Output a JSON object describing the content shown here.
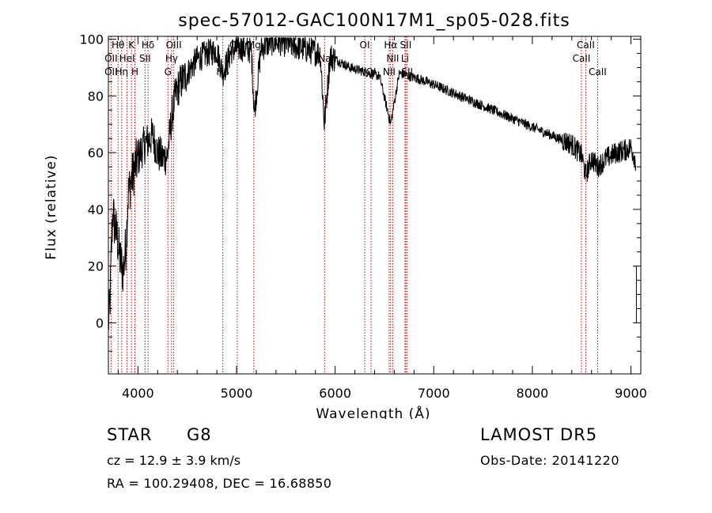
{
  "chart_data": {
    "type": "line",
    "title": "spec-57012-GAC100N17M1_sp05-028.fits",
    "xlabel": "Wavelength (Å)",
    "ylabel": "Flux (relative)",
    "xlim": [
      3700,
      9100
    ],
    "ylim": [
      -18,
      101
    ],
    "x_ticks": [
      4000,
      5000,
      6000,
      7000,
      8000,
      9000
    ],
    "y_ticks": [
      0,
      20,
      40,
      60,
      80,
      100
    ],
    "grid": false,
    "line_color": "#000000",
    "marker_color": "#c00000",
    "spectrum_anchors": {
      "x": [
        3700,
        3715,
        3730,
        3745,
        3760,
        3790,
        3820,
        3850,
        3880,
        3900,
        3930,
        3970,
        4000,
        4050,
        4100,
        4150,
        4200,
        4250,
        4300,
        4340,
        4380,
        4420,
        4500,
        4600,
        4700,
        4800,
        4860,
        4950,
        5050,
        5150,
        5180,
        5250,
        5350,
        5450,
        5550,
        5650,
        5750,
        5850,
        5890,
        5950,
        6050,
        6150,
        6250,
        6350,
        6450,
        6563,
        6650,
        6750,
        6850,
        7000,
        7200,
        7400,
        7600,
        7800,
        8000,
        8200,
        8400,
        8500,
        8542,
        8600,
        8662,
        8750,
        8850,
        8950,
        9000,
        9050
      ],
      "y": [
        0,
        5,
        25,
        40,
        35,
        30,
        22,
        18,
        28,
        45,
        50,
        55,
        58,
        62,
        64,
        66,
        60,
        58,
        59,
        72,
        80,
        84,
        88,
        93,
        95,
        96,
        88,
        96,
        97,
        96,
        74,
        97,
        99,
        99,
        98,
        97,
        96,
        95,
        70,
        94,
        92,
        90,
        89,
        88,
        87,
        70,
        88,
        87,
        86,
        84,
        81,
        78,
        75,
        72,
        69,
        66,
        63,
        59,
        52,
        58,
        55,
        58,
        60,
        61,
        62,
        57
      ]
    },
    "line_markers": [
      {
        "label": "Hθ",
        "wavelength": 3798,
        "row": 0
      },
      {
        "label": "OII",
        "wavelength": 3727,
        "row": 1
      },
      {
        "label": "OII",
        "wavelength": 3727,
        "row": 2
      },
      {
        "label": "K",
        "wavelength": 3934,
        "row": 0
      },
      {
        "label": "HeI",
        "wavelength": 3889,
        "row": 1
      },
      {
        "label": "Hη",
        "wavelength": 3835,
        "row": 2
      },
      {
        "label": "Hδ",
        "wavelength": 4102,
        "row": 0
      },
      {
        "label": "SII",
        "wavelength": 4072,
        "row": 1
      },
      {
        "label": "H",
        "wavelength": 3969,
        "row": 2
      },
      {
        "label": "OIII",
        "wavelength": 4363,
        "row": 0
      },
      {
        "label": "Hγ",
        "wavelength": 4341,
        "row": 1
      },
      {
        "label": "G",
        "wavelength": 4304,
        "row": 2
      },
      {
        "label": "OIII",
        "wavelength": 5007,
        "row": 0
      },
      {
        "label": "Hβ",
        "wavelength": 4861,
        "row": 2
      },
      {
        "label": "Mg",
        "wavelength": 5175,
        "row": 0
      },
      {
        "label": "Na",
        "wavelength": 5893,
        "row": 1
      },
      {
        "label": "OI",
        "wavelength": 6300,
        "row": 0
      },
      {
        "label": "OI",
        "wavelength": 6364,
        "row": 2
      },
      {
        "label": "Hα",
        "wavelength": 6563,
        "row": 0
      },
      {
        "label": "NII",
        "wavelength": 6584,
        "row": 1
      },
      {
        "label": "NII",
        "wavelength": 6548,
        "row": 2
      },
      {
        "label": "SII",
        "wavelength": 6716,
        "row": 0
      },
      {
        "label": "Li",
        "wavelength": 6708,
        "row": 1
      },
      {
        "label": "SII",
        "wavelength": 6731,
        "row": 2
      },
      {
        "label": "CaII",
        "wavelength": 8542,
        "row": 0
      },
      {
        "label": "CaII",
        "wavelength": 8498,
        "row": 1
      },
      {
        "label": "CaII",
        "wavelength": 8662,
        "row": 2
      }
    ]
  },
  "info": {
    "object_type": "STAR",
    "object_class": "G8",
    "survey": "LAMOST DR5",
    "cz": "cz = 12.9 ± 3.9 km/s",
    "obs_date": "Obs-Date: 20141220",
    "radec": "RA = 100.29408, DEC =  16.68850"
  }
}
